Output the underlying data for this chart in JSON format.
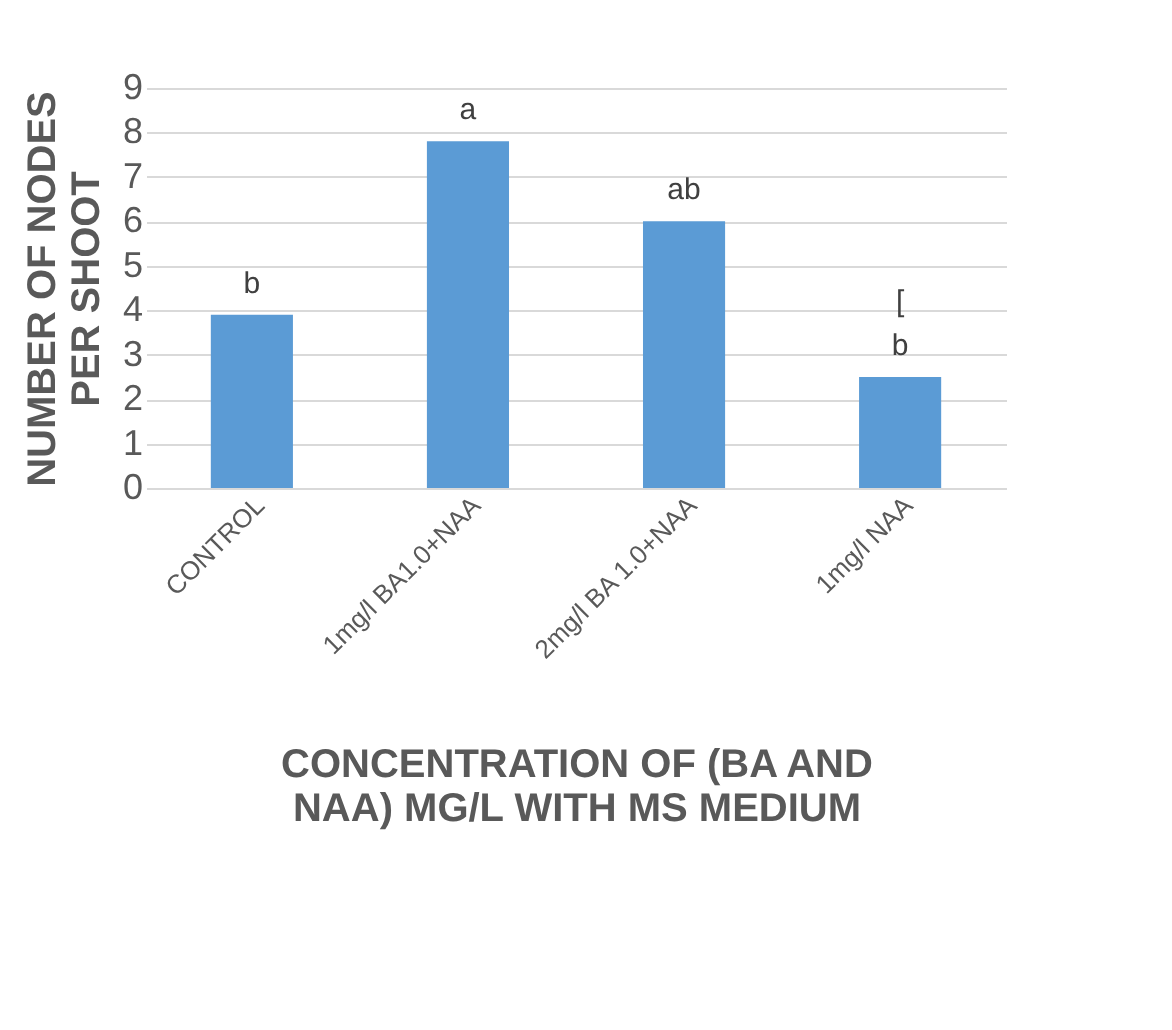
{
  "chart_data": {
    "type": "bar",
    "categories": [
      "CONTROL",
      "1mg/l BA1.0+NAA",
      "2mg/l BA 1.0+NAA",
      "1mg/l NAA"
    ],
    "values": [
      3.9,
      7.8,
      6.0,
      2.5
    ],
    "color": "#5b9bd5",
    "ylim": [
      0,
      9
    ],
    "yticks": [
      0,
      1,
      2,
      3,
      4,
      5,
      6,
      7,
      8,
      9
    ],
    "grid": "y",
    "ylabel": "NUMBER OF NODES PER SHOOT",
    "xlabel": "CONCENTRATION OF (BA AND NAA) MG/L  WITH MS MEDIUM",
    "annotations": [
      {
        "text": "b",
        "x": "CONTROL",
        "y": 3.9
      },
      {
        "text": "a",
        "x": "1mg/l BA1.0+NAA",
        "y": 7.8
      },
      {
        "text": "ab",
        "x": "2mg/l BA 1.0+NAA",
        "y": 6.0
      },
      {
        "text": "b",
        "x": "1mg/l NAA",
        "y": 2.5
      },
      {
        "text": "[",
        "x": "1mg/l NAA",
        "y": 2.5
      }
    ]
  }
}
